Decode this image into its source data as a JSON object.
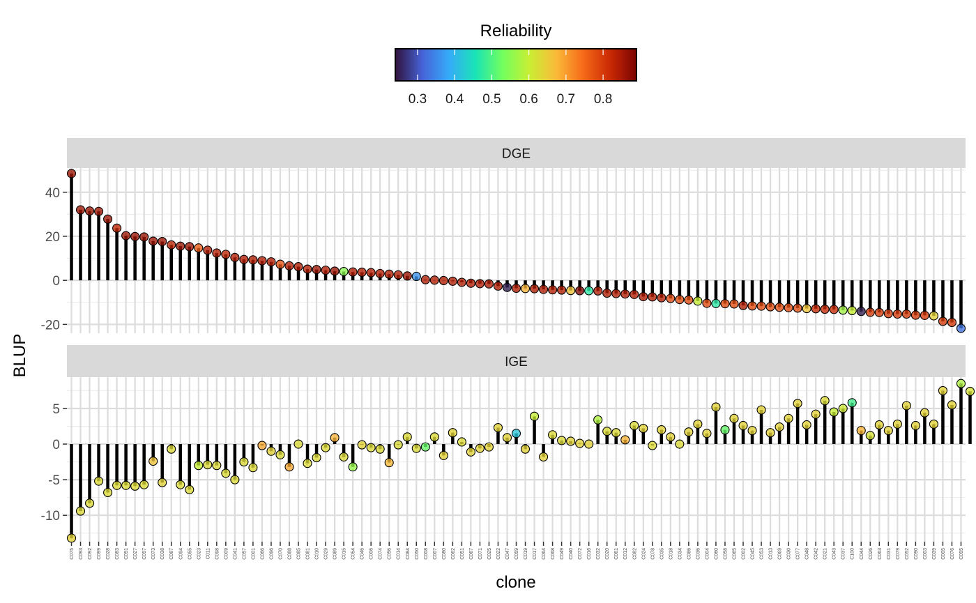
{
  "chart_data": {
    "type": "lollipop",
    "xlabel": "clone",
    "ylabel": "BLUP",
    "legend": {
      "title": "Reliability",
      "position": "top",
      "ticks": [
        "0.3",
        "0.4",
        "0.5",
        "0.6",
        "0.7",
        "0.8"
      ],
      "range": [
        0.24,
        0.89
      ],
      "palette": [
        "#30123b",
        "#4662d7",
        "#36aaf9",
        "#1ae4b6",
        "#72fe5e",
        "#c8ef34",
        "#faba39",
        "#f66b19",
        "#cb2a04",
        "#7a0403"
      ]
    },
    "clones": [
      "C075",
      "C093",
      "C092",
      "C099",
      "C028",
      "C083",
      "C091",
      "C027",
      "C097",
      "C073",
      "C038",
      "C087",
      "C094",
      "C055",
      "C023",
      "C011",
      "C098",
      "C009",
      "C041",
      "C057",
      "C001",
      "C066",
      "C096",
      "C070",
      "C088",
      "C085",
      "C081",
      "C010",
      "C029",
      "C089",
      "C015",
      "C054",
      "C046",
      "C006",
      "C074",
      "C056",
      "C014",
      "C084",
      "C050",
      "C008",
      "C007",
      "C080",
      "C062",
      "C051",
      "C067",
      "C071",
      "C025",
      "C022",
      "C047",
      "C059",
      "C019",
      "C017",
      "C064",
      "C068",
      "C049",
      "C040",
      "C072",
      "C016",
      "C032",
      "C020",
      "C061",
      "C012",
      "C082",
      "C024",
      "C078",
      "C035",
      "C018",
      "C034",
      "C086",
      "C036",
      "C004",
      "C060",
      "C058",
      "C065",
      "C002",
      "C045",
      "C053",
      "C013",
      "C069",
      "C030",
      "C077",
      "C048",
      "C042",
      "C021",
      "C043",
      "C037",
      "C100",
      "C044",
      "C026",
      "C063",
      "C031",
      "C079",
      "C052",
      "C090",
      "C003",
      "C039",
      "C005",
      "C076",
      "C095"
    ],
    "panels": [
      {
        "strip": "DGE",
        "ylim": [
          -24,
          51
        ],
        "yticks": [
          -20,
          0,
          20,
          40
        ],
        "values": [
          48.5,
          32,
          31.5,
          31.3,
          27.8,
          23.7,
          20.3,
          19.9,
          19.7,
          17.8,
          17.6,
          16.1,
          15.5,
          15.3,
          14.7,
          13.7,
          12.4,
          11.8,
          10.4,
          9.5,
          9.3,
          8.9,
          8.4,
          7.3,
          6.6,
          6.2,
          5.1,
          4.9,
          4.6,
          4.2,
          4,
          3.8,
          3.7,
          3.5,
          3.1,
          2.8,
          2.5,
          2,
          1.8,
          0.3,
          0.1,
          -0.1,
          -0.4,
          -0.9,
          -1.3,
          -1.5,
          -1.6,
          -2.6,
          -3.2,
          -3.6,
          -3.7,
          -3.8,
          -4.1,
          -4.3,
          -4.4,
          -4.6,
          -4.7,
          -4.7,
          -4.8,
          -5.8,
          -6,
          -6.2,
          -6.4,
          -7.4,
          -7.5,
          -7.9,
          -8.2,
          -8.7,
          -8.9,
          -9.4,
          -10.4,
          -10.5,
          -10.6,
          -10.7,
          -11.4,
          -11.6,
          -11.7,
          -12,
          -12.2,
          -12.4,
          -12.6,
          -12.8,
          -12.9,
          -13.1,
          -13.2,
          -13.5,
          -13.7,
          -14.1,
          -14.5,
          -14.6,
          -15.1,
          -15.3,
          -15.3,
          -15.8,
          -15.9,
          -16.1,
          -18.6,
          -19.1,
          -21.8
        ],
        "reliability": [
          0.86,
          0.86,
          0.86,
          0.86,
          0.86,
          0.83,
          0.86,
          0.86,
          0.86,
          0.86,
          0.86,
          0.83,
          0.86,
          0.86,
          0.76,
          0.84,
          0.84,
          0.83,
          0.84,
          0.84,
          0.84,
          0.84,
          0.84,
          0.77,
          0.84,
          0.84,
          0.84,
          0.86,
          0.84,
          0.86,
          0.55,
          0.84,
          0.84,
          0.84,
          0.84,
          0.84,
          0.84,
          0.86,
          0.36,
          0.84,
          0.84,
          0.84,
          0.84,
          0.84,
          0.84,
          0.84,
          0.84,
          0.84,
          0.25,
          0.84,
          0.68,
          0.84,
          0.84,
          0.84,
          0.84,
          0.66,
          0.88,
          0.47,
          0.84,
          0.84,
          0.84,
          0.84,
          0.84,
          0.84,
          0.84,
          0.84,
          0.78,
          0.78,
          0.78,
          0.6,
          0.78,
          0.47,
          0.78,
          0.78,
          0.84,
          0.78,
          0.78,
          0.78,
          0.78,
          0.78,
          0.78,
          0.66,
          0.82,
          0.82,
          0.82,
          0.57,
          0.6,
          0.25,
          0.8,
          0.8,
          0.8,
          0.8,
          0.8,
          0.8,
          0.8,
          0.64,
          0.8,
          0.8,
          0.33,
          0.8
        ]
      },
      {
        "strip": "IGE",
        "ylim": [
          -13.7,
          9.4
        ],
        "yticks": [
          -10,
          -5,
          0,
          5
        ],
        "values": [
          -13.2,
          -9.4,
          -8.3,
          -5.2,
          -6.8,
          -5.8,
          -5.8,
          -5.9,
          -5.7,
          -2.4,
          -5.4,
          -0.7,
          -5.7,
          -6.4,
          -3,
          -2.9,
          -3,
          -4.1,
          -5,
          -2.5,
          -3.3,
          -0.2,
          -1,
          -1.5,
          -3.2,
          0,
          -2.7,
          -1.9,
          -0.5,
          0.9,
          -1.8,
          -3.2,
          -0.1,
          -0.5,
          -0.7,
          -2.6,
          -0.1,
          1,
          -0.6,
          -0.4,
          1,
          -1.6,
          1.6,
          0.3,
          -1.1,
          -0.6,
          -0.4,
          2.3,
          0.9,
          1.5,
          -0.7,
          3.9,
          -1.8,
          1.3,
          0.5,
          0.4,
          0.1,
          0,
          3.4,
          1.8,
          1.6,
          0.6,
          2.6,
          2.2,
          -0.2,
          2,
          1,
          0,
          1.7,
          2.8,
          1.5,
          5.2,
          2,
          3.6,
          2.6,
          1.9,
          4.8,
          1.6,
          2.4,
          3.6,
          5.7,
          2.7,
          4.2,
          6.1,
          4.5,
          5,
          5.8,
          1.9,
          1.2,
          2.7,
          1.9,
          2.8,
          5.4,
          2.6,
          4.4,
          2.8,
          7.5,
          5.5,
          8.5,
          7.4
        ],
        "reliability": [
          0.64,
          0.63,
          0.63,
          0.63,
          0.63,
          0.63,
          0.63,
          0.63,
          0.63,
          0.66,
          0.64,
          0.63,
          0.63,
          0.63,
          0.6,
          0.63,
          0.63,
          0.63,
          0.63,
          0.63,
          0.63,
          0.69,
          0.64,
          0.63,
          0.69,
          0.63,
          0.63,
          0.63,
          0.63,
          0.68,
          0.63,
          0.56,
          0.64,
          0.63,
          0.63,
          0.67,
          0.63,
          0.63,
          0.63,
          0.52,
          0.63,
          0.64,
          0.64,
          0.63,
          0.64,
          0.64,
          0.64,
          0.64,
          0.64,
          0.42,
          0.64,
          0.6,
          0.64,
          0.63,
          0.63,
          0.64,
          0.64,
          0.64,
          0.58,
          0.63,
          0.63,
          0.68,
          0.63,
          0.64,
          0.63,
          0.64,
          0.64,
          0.63,
          0.64,
          0.64,
          0.64,
          0.64,
          0.52,
          0.64,
          0.64,
          0.64,
          0.64,
          0.64,
          0.64,
          0.64,
          0.64,
          0.64,
          0.64,
          0.63,
          0.6,
          0.61,
          0.49,
          0.68,
          0.62,
          0.64,
          0.64,
          0.64,
          0.64,
          0.64,
          0.64,
          0.64,
          0.64,
          0.64,
          0.58,
          0.62
        ]
      }
    ]
  }
}
